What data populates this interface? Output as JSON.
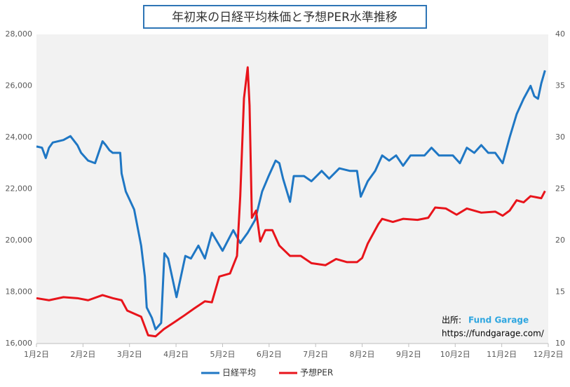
{
  "chart_data": {
    "type": "line",
    "title": "年初来の日経平均株価と予想PER水準推移",
    "source_label": "出所:",
    "source_name": "Fund Garage",
    "source_url": "https://fundgarage.com/",
    "xlim": [
      0,
      11
    ],
    "xticks": [
      {
        "value": 0,
        "label": "1月2日"
      },
      {
        "value": 1,
        "label": "2月2日"
      },
      {
        "value": 2,
        "label": "3月2日"
      },
      {
        "value": 3,
        "label": "4月2日"
      },
      {
        "value": 4,
        "label": "5月2日"
      },
      {
        "value": 5,
        "label": "6月2日"
      },
      {
        "value": 6,
        "label": "7月2日"
      },
      {
        "value": 7,
        "label": "8月2日"
      },
      {
        "value": 8,
        "label": "9月2日"
      },
      {
        "value": 9,
        "label": "10月2日"
      },
      {
        "value": 10,
        "label": "11月2日"
      },
      {
        "value": 11,
        "label": "12月2日"
      }
    ],
    "ylim": [
      16000,
      28000
    ],
    "yticks": [
      {
        "value": 16000,
        "label": "16,000"
      },
      {
        "value": 18000,
        "label": "18,000"
      },
      {
        "value": 20000,
        "label": "20,000"
      },
      {
        "value": 22000,
        "label": "22,000"
      },
      {
        "value": 24000,
        "label": "24,000"
      },
      {
        "value": 26000,
        "label": "26,000"
      },
      {
        "value": 28000,
        "label": "28,000"
      }
    ],
    "y2lim": [
      10,
      40
    ],
    "y2ticks": [
      10,
      15,
      20,
      25,
      30,
      35,
      40
    ],
    "legend": "bottom",
    "series": [
      {
        "name": "日経平均",
        "color": "#1f77c4",
        "x": [
          0,
          0.12,
          0.2,
          0.27,
          0.35,
          0.58,
          0.73,
          0.88,
          0.96,
          1.11,
          1.26,
          1.42,
          1.49,
          1.57,
          1.64,
          1.8,
          1.83,
          1.92,
          2.1,
          2.25,
          2.33,
          2.37,
          2.48,
          2.56,
          2.68,
          2.75,
          2.83,
          3.01,
          3.2,
          3.32,
          3.48,
          3.62,
          3.77,
          4.0,
          4.23,
          4.38,
          4.54,
          4.7,
          4.85,
          4.99,
          5.14,
          5.22,
          5.3,
          5.45,
          5.53,
          5.75,
          5.91,
          6.13,
          6.29,
          6.51,
          6.74,
          6.89,
          6.97,
          7.12,
          7.28,
          7.43,
          7.58,
          7.73,
          7.88,
          8.04,
          8.34,
          8.49,
          8.65,
          8.95,
          9.1,
          9.25,
          9.41,
          9.56,
          9.71,
          9.86,
          10.02,
          10.17,
          10.32,
          10.47,
          10.62,
          10.7,
          10.78,
          10.85,
          10.93
        ],
        "values": [
          23650,
          23600,
          23200,
          23600,
          23800,
          23900,
          24050,
          23700,
          23400,
          23100,
          23000,
          23850,
          23700,
          23500,
          23400,
          23400,
          22600,
          21900,
          21200,
          19800,
          18600,
          17400,
          17000,
          16550,
          16800,
          19500,
          19300,
          17800,
          19400,
          19300,
          19800,
          19300,
          20300,
          19600,
          20400,
          19900,
          20300,
          20800,
          21900,
          22500,
          23100,
          23000,
          22400,
          21500,
          22500,
          22500,
          22300,
          22700,
          22400,
          22800,
          22700,
          22700,
          21700,
          22300,
          22700,
          23300,
          23100,
          23300,
          22900,
          23300,
          23300,
          23600,
          23300,
          23300,
          23000,
          23600,
          23400,
          23700,
          23400,
          23400,
          23000,
          24000,
          24900,
          25500,
          26000,
          25600,
          25500,
          26100,
          26600
        ]
      },
      {
        "name": "予想PER",
        "color": "#e8141b",
        "axis": "y2",
        "x": [
          0,
          0.27,
          0.58,
          0.88,
          1.11,
          1.42,
          1.64,
          1.83,
          1.95,
          2.25,
          2.4,
          2.56,
          2.74,
          2.94,
          3.17,
          3.39,
          3.62,
          3.77,
          3.93,
          4.16,
          4.31,
          4.38,
          4.46,
          4.54,
          4.58,
          4.63,
          4.72,
          4.81,
          4.92,
          5.07,
          5.22,
          5.45,
          5.68,
          5.91,
          6.21,
          6.44,
          6.67,
          6.89,
          7.0,
          7.12,
          7.35,
          7.43,
          7.66,
          7.88,
          8.19,
          8.42,
          8.57,
          8.8,
          9.03,
          9.25,
          9.56,
          9.86,
          10.02,
          10.17,
          10.32,
          10.47,
          10.62,
          10.85,
          10.93
        ],
        "values": [
          14.4,
          14.2,
          14.5,
          14.4,
          14.2,
          14.7,
          14.4,
          14.2,
          13.2,
          12.6,
          10.8,
          10.7,
          11.4,
          12.0,
          12.7,
          13.4,
          14.1,
          14.0,
          16.5,
          16.8,
          18.5,
          24.3,
          33.8,
          36.8,
          33.1,
          22.2,
          22.9,
          19.9,
          21.0,
          21.0,
          19.5,
          18.5,
          18.5,
          17.8,
          17.6,
          18.2,
          17.9,
          17.9,
          18.3,
          19.7,
          21.6,
          22.1,
          21.8,
          22.1,
          22.0,
          22.2,
          23.2,
          23.1,
          22.5,
          23.1,
          22.7,
          22.8,
          22.4,
          22.9,
          23.9,
          23.7,
          24.3,
          24.1,
          24.8
        ]
      }
    ]
  }
}
